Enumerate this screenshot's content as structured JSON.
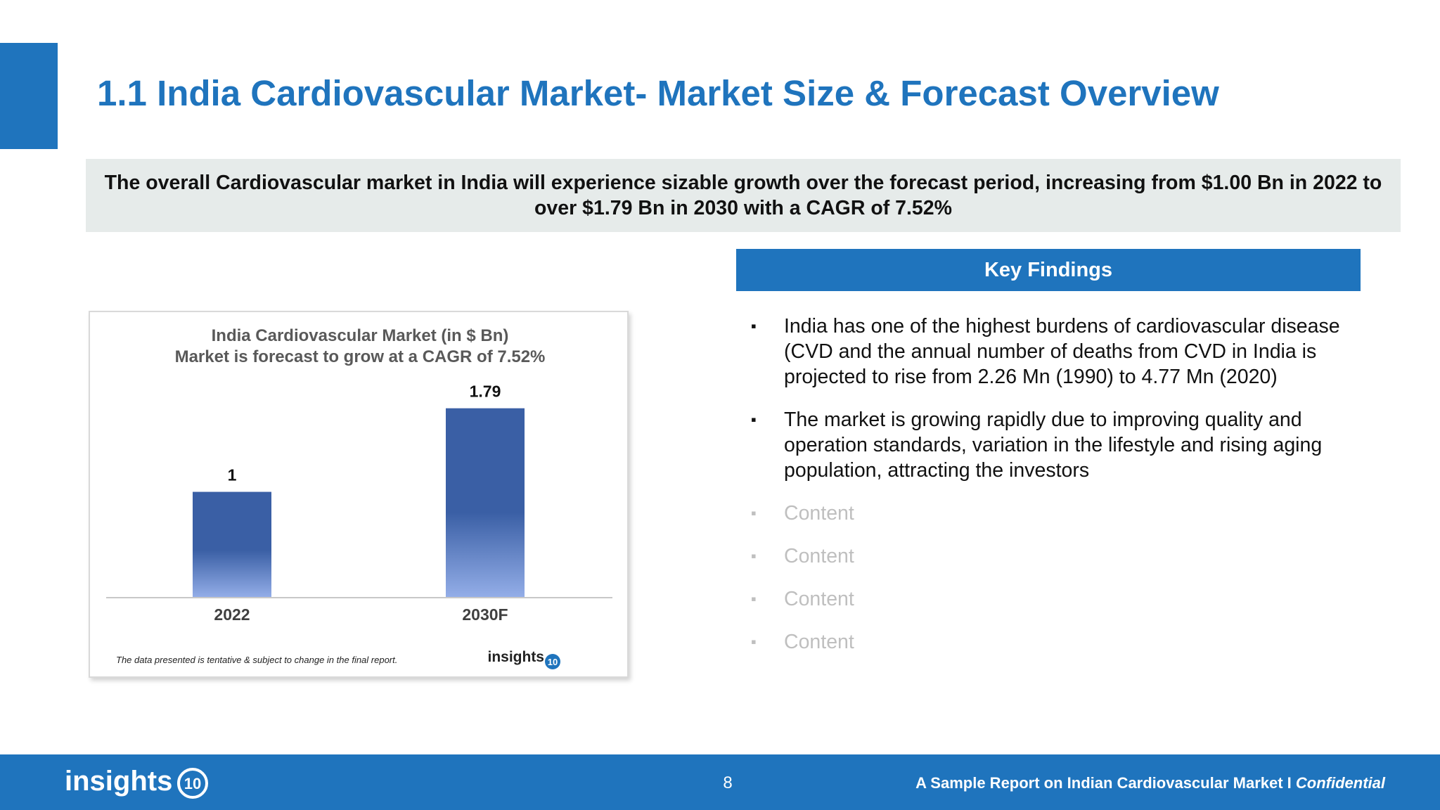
{
  "page": {
    "title": "1.1 India Cardiovascular Market- Market Size & Forecast Overview",
    "summary": "The overall Cardiovascular market in India will experience sizable growth over the forecast period, increasing from $1.00 Bn in 2022 to over $1.79 Bn in 2030 with a CAGR of 7.52%",
    "accent_color": "#1f74bd"
  },
  "chart_data": {
    "type": "bar",
    "title": "India Cardiovascular Market (in $ Bn)",
    "subtitle": "Market is forecast to grow at a CAGR of 7.52%",
    "categories": [
      "2022",
      "2030F"
    ],
    "values": [
      1,
      1.79
    ],
    "value_labels": [
      "1",
      "1.79"
    ],
    "ylim": [
      0,
      2.1
    ],
    "grid": false,
    "bar_color_top": "#3a5fa5",
    "bar_color_bottom": "#94aee8",
    "footnote": "The data presented is tentative & subject to change in the final report.",
    "logo": "insights10"
  },
  "key_findings": {
    "header": "Key Findings",
    "bullet_symbol": "▪",
    "items": [
      "India has one of the highest burdens of cardiovascular disease (CVD and the annual number of deaths from CVD in India is projected to rise from 2.26 Mn (1990) to 4.77 Mn (2020)",
      "The market is growing rapidly due to improving quality and operation standards, variation in the lifestyle and rising aging population, attracting the investors"
    ],
    "placeholders": [
      "Content",
      "Content",
      "Content",
      "Content"
    ]
  },
  "footer": {
    "logo": "insights10",
    "page_number": "8",
    "report_text": "A Sample Report on Indian Cardiovascular Market I ",
    "confidential": "Confidential"
  }
}
